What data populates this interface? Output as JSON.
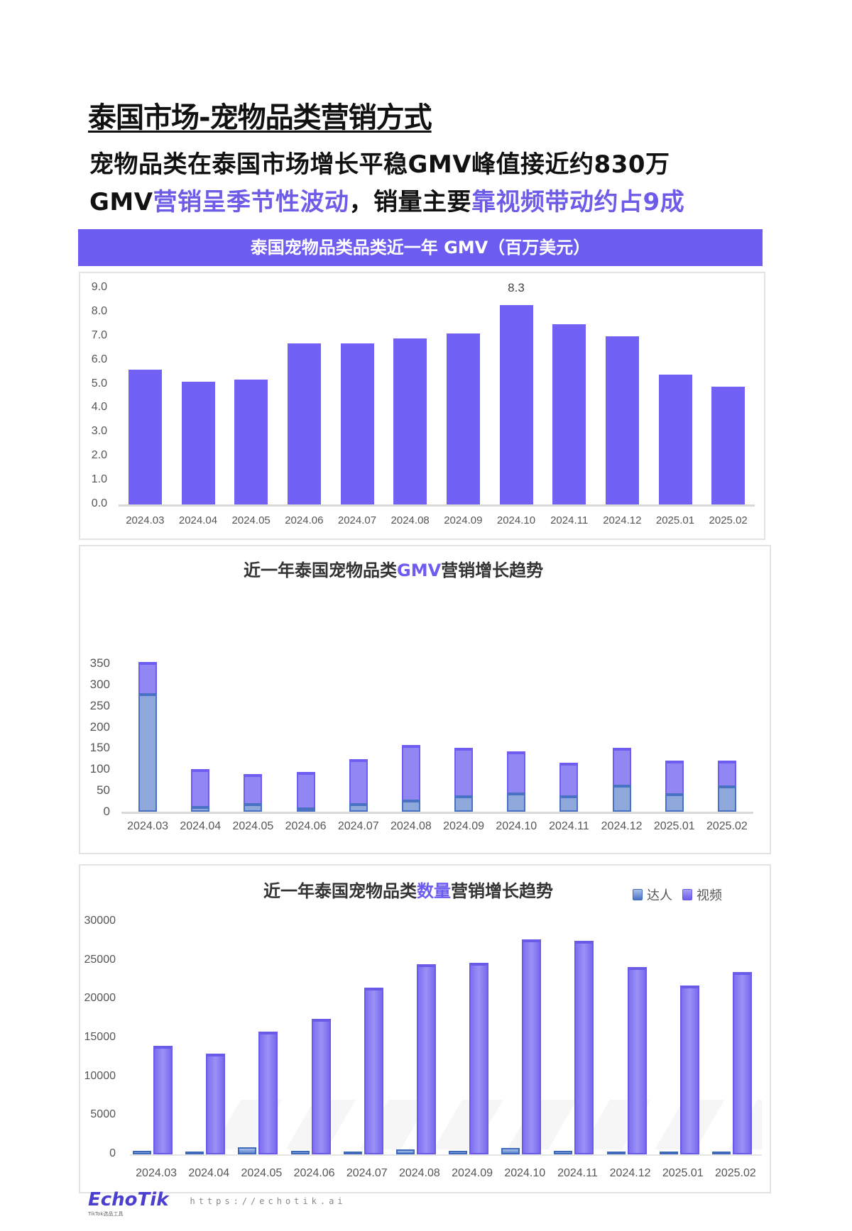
{
  "page": {
    "heading": "泰国市场-宠物品类营销方式",
    "subtitle_line1": "宠物品类在泰国市场增长平稳GMV峰值接近约830万",
    "subtitle_line2": {
      "part1": "GMV",
      "part2_highlight": "营销呈季节性波动",
      "part3": "，销量主要",
      "part4_highlight": "靠视频带动约占9成"
    },
    "accent_color": "#6c5cef",
    "band_title": "泰国宠物品类品类近一年 GMV（百万美元）"
  },
  "footer": {
    "logo": "EchoTik",
    "logo_sub": "TikTok选品工具",
    "url": "https://echotik.ai"
  },
  "chart_data": [
    {
      "type": "bar",
      "title": "泰国宠物品类品类近一年 GMV（百万美元）",
      "xlabel": "",
      "ylabel": "GMV (百万美元)",
      "ylim": [
        0,
        9
      ],
      "yticks": [
        "0.0",
        "1.0",
        "2.0",
        "3.0",
        "4.0",
        "5.0",
        "6.0",
        "7.0",
        "8.0",
        "9.0"
      ],
      "grid": false,
      "categories": [
        "2024.03",
        "2024.04",
        "2024.05",
        "2024.06",
        "2024.07",
        "2024.08",
        "2024.09",
        "2024.10",
        "2024.11",
        "2024.12",
        "2025.01",
        "2025.02"
      ],
      "values": [
        5.6,
        5.1,
        5.2,
        6.7,
        6.7,
        6.9,
        7.1,
        8.3,
        7.5,
        7.0,
        5.4,
        4.9
      ],
      "annotations": [
        {
          "category": "2024.10",
          "text": "8.3"
        }
      ],
      "color": "#7161f4"
    },
    {
      "type": "bar",
      "stacked": true,
      "title": "近一年泰国宠物品类GMV营销增长趋势",
      "title_parts": [
        "近一年泰国宠物品类",
        "GMV",
        "营销增长趋势"
      ],
      "xlabel": "",
      "ylabel": "",
      "ylim": [
        0,
        350
      ],
      "yticks": [
        "0",
        "50",
        "100",
        "150",
        "200",
        "250",
        "300",
        "350"
      ],
      "grid": false,
      "categories": [
        "2024.03",
        "2024.04",
        "2024.05",
        "2024.06",
        "2024.07",
        "2024.08",
        "2024.09",
        "2024.10",
        "2024.11",
        "2024.12",
        "2025.01",
        "2025.02"
      ],
      "series": [
        {
          "name": "达人",
          "color": "#8fa8dc",
          "values": [
            280,
            14,
            20,
            10,
            20,
            29,
            38,
            45,
            39,
            63,
            44,
            62
          ]
        },
        {
          "name": "视频",
          "color": "#9286f2",
          "values": [
            73,
            86,
            69,
            84,
            104,
            128,
            112,
            98,
            77,
            87,
            76,
            58
          ]
        }
      ]
    },
    {
      "type": "bar",
      "title": "近一年泰国宠物品类数量营销增长趋势",
      "title_parts": [
        "近一年泰国宠物品类",
        "数量",
        "营销增长趋势"
      ],
      "xlabel": "",
      "ylabel": "",
      "ylim": [
        0,
        30000
      ],
      "yticks": [
        "0",
        "5000",
        "10000",
        "15000",
        "20000",
        "25000",
        "30000"
      ],
      "grid": false,
      "legend": [
        "达人",
        "视频"
      ],
      "legend_position": "top-right",
      "categories": [
        "2024.03",
        "2024.04",
        "2024.05",
        "2024.06",
        "2024.07",
        "2024.08",
        "2024.09",
        "2024.10",
        "2024.11",
        "2024.12",
        "2025.01",
        "2025.02"
      ],
      "series": [
        {
          "name": "达人",
          "color": "#5f86cf",
          "values": [
            500,
            400,
            900,
            500,
            300,
            600,
            500,
            800,
            500,
            250,
            250,
            250
          ]
        },
        {
          "name": "视频",
          "color": "#7f6ff0",
          "values": [
            13950,
            12950,
            15850,
            17450,
            21450,
            24500,
            24650,
            27700,
            27500,
            24150,
            21800,
            23550
          ]
        }
      ]
    }
  ]
}
